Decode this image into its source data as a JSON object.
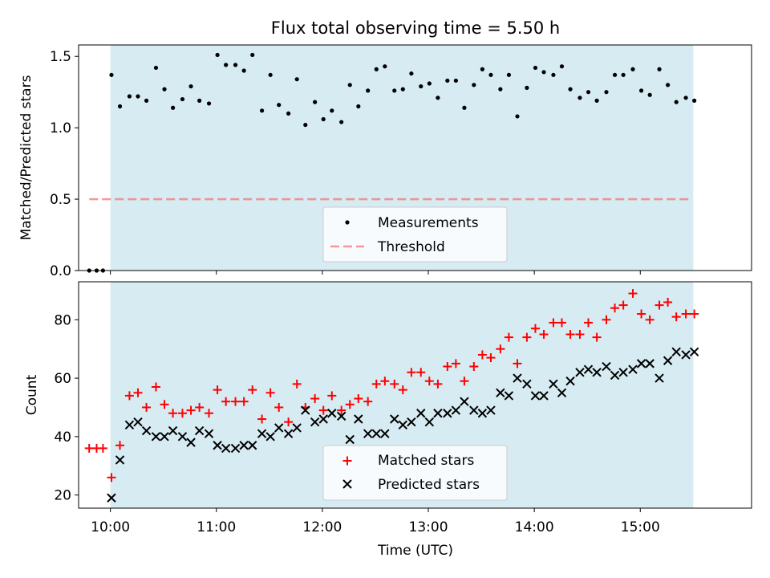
{
  "title": "Flux total observing time = 5.50 h",
  "colors": {
    "shade": "#add8e6",
    "matched": "#ff0000",
    "predicted": "#000000",
    "threshold": "#f08080",
    "measurement": "#000000"
  },
  "chart_data": [
    {
      "type": "scatter",
      "ylabel": "Matched/Predicted stars",
      "ylim": [
        0,
        1.58
      ],
      "yticks": [
        0.0,
        0.5,
        1.0,
        1.5
      ],
      "ytick_labels": [
        "0.0",
        "0.5",
        "1.0",
        "1.5"
      ],
      "xlim": [
        9.7,
        16.05
      ],
      "shaded_span": [
        10.0,
        15.5
      ],
      "threshold": {
        "label": "Threshold",
        "value": 0.5,
        "x_range": [
          9.8,
          15.47
        ]
      },
      "legend": {
        "position": "lower center",
        "entries": [
          "Measurements",
          "Threshold"
        ]
      },
      "series": [
        {
          "name": "Measurements",
          "x": [
            9.8,
            9.87,
            9.93,
            10.01,
            10.09,
            10.18,
            10.26,
            10.34,
            10.43,
            10.51,
            10.59,
            10.68,
            10.76,
            10.84,
            10.93,
            11.01,
            11.09,
            11.18,
            11.26,
            11.34,
            11.43,
            11.51,
            11.59,
            11.68,
            11.76,
            11.84,
            11.93,
            12.01,
            12.09,
            12.18,
            12.26,
            12.34,
            12.43,
            12.51,
            12.59,
            12.68,
            12.76,
            12.84,
            12.93,
            13.01,
            13.09,
            13.18,
            13.26,
            13.34,
            13.43,
            13.51,
            13.59,
            13.68,
            13.76,
            13.84,
            13.93,
            14.01,
            14.09,
            14.18,
            14.26,
            14.34,
            14.43,
            14.51,
            14.59,
            14.68,
            14.76,
            14.84,
            14.93,
            15.01,
            15.09,
            15.18,
            15.26,
            15.34,
            15.43,
            15.51
          ],
          "y": [
            0,
            0,
            0,
            1.37,
            1.15,
            1.22,
            1.22,
            1.19,
            1.42,
            1.27,
            1.14,
            1.2,
            1.29,
            1.19,
            1.17,
            1.51,
            1.44,
            1.44,
            1.4,
            1.51,
            1.12,
            1.37,
            1.16,
            1.1,
            1.34,
            1.02,
            1.18,
            1.06,
            1.12,
            1.04,
            1.3,
            1.15,
            1.26,
            1.41,
            1.43,
            1.26,
            1.27,
            1.38,
            1.29,
            1.31,
            1.21,
            1.33,
            1.33,
            1.14,
            1.3,
            1.41,
            1.37,
            1.27,
            1.37,
            1.08,
            1.28,
            1.42,
            1.39,
            1.37,
            1.43,
            1.27,
            1.21,
            1.25,
            1.19,
            1.25,
            1.37,
            1.37,
            1.41,
            1.26,
            1.23,
            1.41,
            1.3,
            1.18,
            1.21,
            1.19
          ]
        }
      ]
    },
    {
      "type": "scatter",
      "xlabel": "Time (UTC)",
      "ylabel": "Count",
      "ylim": [
        15.5,
        93
      ],
      "yticks": [
        20,
        40,
        60,
        80
      ],
      "ytick_labels": [
        "20",
        "40",
        "60",
        "80"
      ],
      "xlim": [
        9.7,
        16.05
      ],
      "xticks": [
        10,
        11,
        12,
        13,
        14,
        15
      ],
      "xtick_labels": [
        "10:00",
        "11:00",
        "12:00",
        "13:00",
        "14:00",
        "15:00"
      ],
      "shaded_span": [
        10.0,
        15.5
      ],
      "legend": {
        "position": "lower center",
        "entries": [
          "Matched stars",
          "Predicted stars"
        ]
      },
      "series": [
        {
          "name": "Matched stars",
          "marker": "+",
          "x": [
            9.8,
            9.87,
            9.93,
            10.01,
            10.09,
            10.18,
            10.26,
            10.34,
            10.43,
            10.51,
            10.59,
            10.68,
            10.76,
            10.84,
            10.93,
            11.01,
            11.09,
            11.18,
            11.26,
            11.34,
            11.43,
            11.51,
            11.59,
            11.68,
            11.76,
            11.84,
            11.93,
            12.01,
            12.09,
            12.18,
            12.26,
            12.34,
            12.43,
            12.51,
            12.59,
            12.68,
            12.76,
            12.84,
            12.93,
            13.01,
            13.09,
            13.18,
            13.26,
            13.34,
            13.43,
            13.51,
            13.59,
            13.68,
            13.76,
            13.84,
            13.93,
            14.01,
            14.09,
            14.18,
            14.26,
            14.34,
            14.43,
            14.51,
            14.59,
            14.68,
            14.76,
            14.84,
            14.93,
            15.01,
            15.09,
            15.18,
            15.26,
            15.34,
            15.43,
            15.51
          ],
          "values": [
            36,
            36,
            36,
            26,
            37,
            54,
            55,
            50,
            57,
            51,
            48,
            48,
            49,
            50,
            48,
            56,
            52,
            52,
            52,
            56,
            46,
            55,
            50,
            45,
            58,
            50,
            53,
            49,
            54,
            49,
            51,
            53,
            52,
            58,
            59,
            58,
            56,
            62,
            62,
            59,
            58,
            64,
            65,
            59,
            64,
            68,
            67,
            70,
            74,
            65,
            74,
            77,
            75,
            79,
            79,
            75,
            75,
            79,
            74,
            80,
            84,
            85,
            89,
            82,
            80,
            85,
            86,
            81,
            82,
            82
          ]
        },
        {
          "name": "Predicted stars",
          "marker": "x",
          "x": [
            10.01,
            10.09,
            10.18,
            10.26,
            10.34,
            10.43,
            10.51,
            10.59,
            10.68,
            10.76,
            10.84,
            10.93,
            11.01,
            11.09,
            11.18,
            11.26,
            11.34,
            11.43,
            11.51,
            11.59,
            11.68,
            11.76,
            11.84,
            11.93,
            12.01,
            12.09,
            12.18,
            12.26,
            12.34,
            12.43,
            12.51,
            12.59,
            12.68,
            12.76,
            12.84,
            12.93,
            13.01,
            13.09,
            13.18,
            13.26,
            13.34,
            13.43,
            13.51,
            13.59,
            13.68,
            13.76,
            13.84,
            13.93,
            14.01,
            14.09,
            14.18,
            14.26,
            14.34,
            14.43,
            14.51,
            14.59,
            14.68,
            14.76,
            14.84,
            14.93,
            15.01,
            15.09,
            15.18,
            15.26,
            15.34,
            15.43,
            15.51
          ],
          "values": [
            19,
            32,
            44,
            45,
            42,
            40,
            40,
            42,
            40,
            38,
            42,
            41,
            37,
            36,
            36,
            37,
            37,
            41,
            40,
            43,
            41,
            43,
            49,
            45,
            46,
            48,
            47,
            39,
            46,
            41,
            41,
            41,
            46,
            44,
            45,
            48,
            45,
            48,
            48,
            49,
            52,
            49,
            48,
            49,
            55,
            54,
            60,
            58,
            54,
            54,
            58,
            55,
            59,
            62,
            63,
            62,
            64,
            61,
            62,
            63,
            65,
            65,
            60,
            66,
            69,
            68,
            69
          ]
        }
      ]
    }
  ]
}
